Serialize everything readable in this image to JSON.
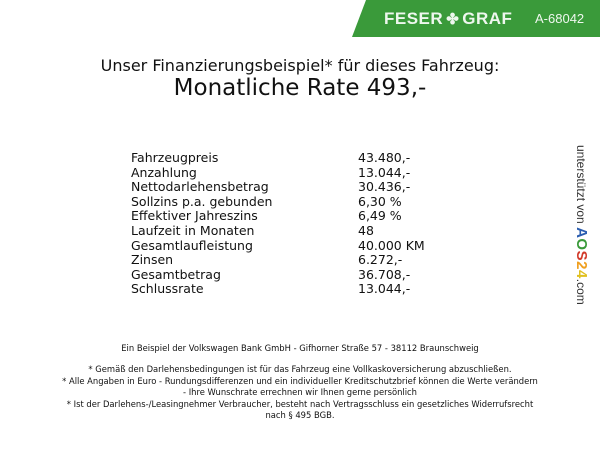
{
  "header": {
    "brand": "FESER",
    "brand2": "GRAF",
    "brand_icon": "clover-icon",
    "code": "A-68042",
    "color": "#3a9a3a"
  },
  "title": {
    "line1": "Unser Finanzierungsbeispiel* für dieses Fahrzeug:",
    "line2": "Monatliche Rate 493,-"
  },
  "rows": [
    {
      "label": "Fahrzeugpreis",
      "value": "43.480,-"
    },
    {
      "label": "Anzahlung",
      "value": "13.044,-"
    },
    {
      "label": "Nettodarlehensbetrag",
      "value": "30.436,-"
    },
    {
      "label": "Sollzins p.a. gebunden",
      "value": "6,30 %"
    },
    {
      "label": "Effektiver Jahreszins",
      "value": "6,49 %"
    },
    {
      "label": "Laufzeit in Monaten",
      "value": "48"
    },
    {
      "label": "Gesamtlaufleistung",
      "value": "40.000 KM"
    },
    {
      "label": "Zinsen",
      "value": "6.272,-"
    },
    {
      "label": "Gesamtbetrag",
      "value": "36.708,-"
    },
    {
      "label": "Schlussrate",
      "value": "13.044,-"
    }
  ],
  "sidebar": {
    "prefix": "unterstützt von",
    "logo": [
      "A",
      "O",
      "S",
      "2",
      "4"
    ],
    "suffix": ".com"
  },
  "footer": {
    "bank": "Ein Beispiel der Volkswagen Bank GmbH - Gifhorner Straße 57 - 38112 Braunschweig",
    "notes": [
      "* Gemäß den Darlehensbedingungen ist für das Fahrzeug eine Vollkaskoversicherung abzuschließen.",
      "* Alle Angaben in Euro - Rundungsdifferenzen und ein individueller Kreditschutzbrief können die Werte verändern",
      "- Ihre Wunschrate errechnen wir Ihnen gerne persönlich",
      "* Ist der Darlehens-/Leasingnehmer Verbraucher, besteht nach Vertragsschluss ein gesetzliches Widerrufsrecht",
      "nach § 495 BGB."
    ]
  }
}
